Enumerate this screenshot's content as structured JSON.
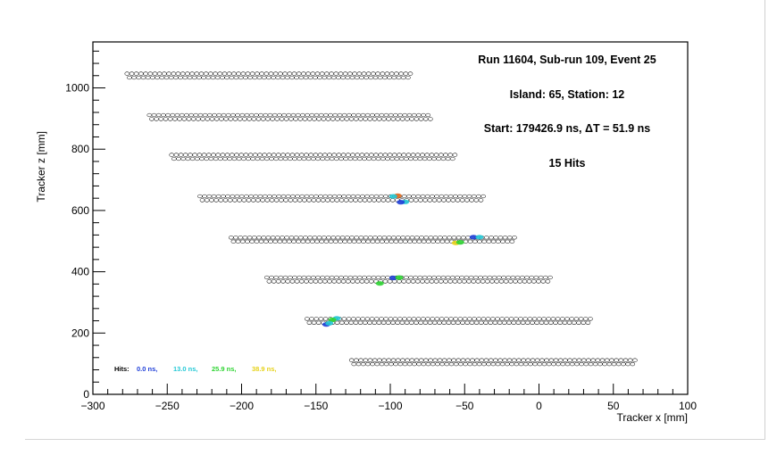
{
  "chart_data": {
    "type": "scatter",
    "xlabel": "Tracker x [mm]",
    "ylabel": "Tracker z [mm]",
    "xlim": [
      -300,
      100
    ],
    "ylim": [
      0,
      1150
    ],
    "x_ticks": [
      -300,
      -250,
      -200,
      -150,
      -100,
      -50,
      0,
      50,
      100
    ],
    "x_tick_labels": [
      "−300",
      "−250",
      "−200",
      "−150",
      "−100",
      "−50",
      "0",
      "50",
      "100"
    ],
    "y_ticks": [
      0,
      200,
      400,
      600,
      800,
      1000
    ],
    "y_tick_labels": [
      "0",
      "200",
      "400",
      "600",
      "800",
      "1000"
    ],
    "grid": false,
    "annotations": [
      "Run 11604, Sub-run 109, Event 25",
      "Island: 65, Station: 12",
      "Start: 179426.9 ns, ΔT = 51.9 ns",
      "15 Hits"
    ],
    "legend": {
      "title": "Hits:",
      "entries": [
        {
          "label": "0.0 ns,",
          "color": "#1f3fd8"
        },
        {
          "label": "13.0 ns,",
          "color": "#25c9d6"
        },
        {
          "label": "25.9 ns,",
          "color": "#2fd433"
        },
        {
          "label": "38.9 ns,",
          "color": "#e6d21a"
        }
      ]
    },
    "modules": [
      {
        "z": 1040,
        "x_start": -277,
        "x_end": -86
      },
      {
        "z": 905,
        "x_start": -262,
        "x_end": -72
      },
      {
        "z": 775,
        "x_start": -247,
        "x_end": -56
      },
      {
        "z": 640,
        "x_start": -228,
        "x_end": -37
      },
      {
        "z": 505,
        "x_start": -207,
        "x_end": -16
      },
      {
        "z": 375,
        "x_start": -183,
        "x_end": 9
      },
      {
        "z": 240,
        "x_start": -156,
        "x_end": 35
      },
      {
        "z": 105,
        "x_start": -126,
        "x_end": 65
      }
    ],
    "hits": [
      {
        "x": -95,
        "z": 648,
        "color": "#e36a1e"
      },
      {
        "x": -98,
        "z": 646,
        "color": "#25c9d6"
      },
      {
        "x": -90,
        "z": 628,
        "color": "#25c9d6"
      },
      {
        "x": -93,
        "z": 627,
        "color": "#1f3fd8"
      },
      {
        "x": -56,
        "z": 494,
        "color": "#e6d21a"
      },
      {
        "x": -53,
        "z": 496,
        "color": "#2fd433"
      },
      {
        "x": -44,
        "z": 513,
        "color": "#1f3fd8"
      },
      {
        "x": -40,
        "z": 513,
        "color": "#25c9d6"
      },
      {
        "x": -98,
        "z": 380,
        "color": "#1f3fd8"
      },
      {
        "x": -94,
        "z": 381,
        "color": "#2fd433"
      },
      {
        "x": -107,
        "z": 362,
        "color": "#2fd433"
      },
      {
        "x": -136,
        "z": 248,
        "color": "#25c9d6"
      },
      {
        "x": -139,
        "z": 243,
        "color": "#2fd433"
      },
      {
        "x": -143,
        "z": 228,
        "color": "#1f3fd8"
      },
      {
        "x": -141,
        "z": 232,
        "color": "#25c9d6"
      }
    ]
  }
}
